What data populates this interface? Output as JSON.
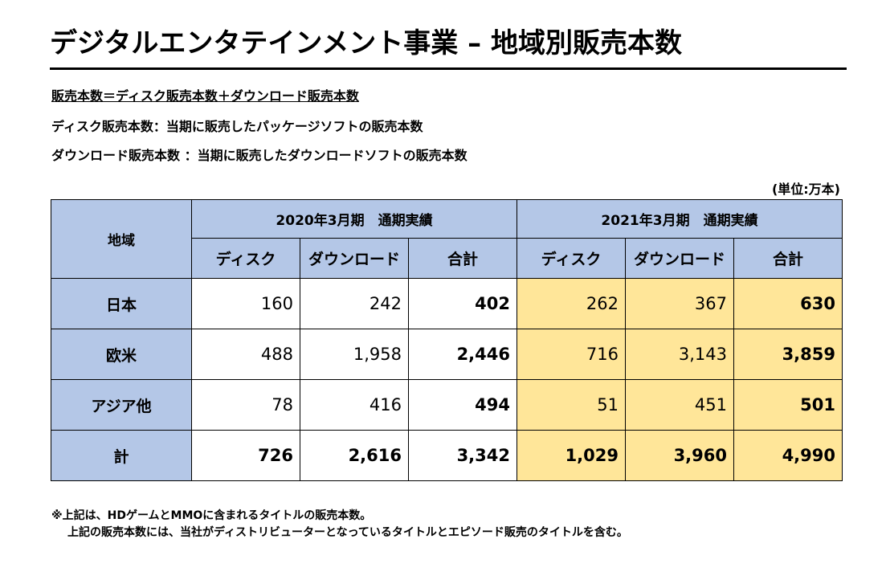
{
  "title": "デジタルエンタテインメント事業 – 地域別販売本数",
  "definitions": {
    "formula": "販売本数＝ディスク販売本数＋ダウンロード販売本数",
    "disc": "ディスク販売本数：当期に販売したパッケージソフトの販売本数",
    "download": "ダウンロード販売本数 ：当期に販売したダウンロードソフトの販売本数"
  },
  "unit": "(単位:万本)",
  "table": {
    "region_header": "地域",
    "periods": [
      {
        "label": "2020年3月期　通期実績"
      },
      {
        "label": "2021年3月期　通期実績"
      }
    ],
    "subheaders": [
      "ディスク",
      "ダウンロード",
      "合計",
      "ディスク",
      "ダウンロード",
      "合計"
    ],
    "rows": [
      {
        "region": "日本",
        "values": [
          "160",
          "242",
          "402",
          "262",
          "367",
          "630"
        ]
      },
      {
        "region": "欧米",
        "values": [
          "488",
          "1,958",
          "2,446",
          "716",
          "3,143",
          "3,859"
        ]
      },
      {
        "region": "アジア他",
        "values": [
          "78",
          "416",
          "494",
          "51",
          "451",
          "501"
        ]
      },
      {
        "region": "計",
        "values": [
          "726",
          "2,616",
          "3,342",
          "1,029",
          "3,960",
          "4,990"
        ]
      }
    ]
  },
  "notes": [
    "※上記は、HDゲームとMMOに含まれるタイトルの販売本数。",
    "上記の販売本数には、当社がディストリビューターとなっているタイトルとエピソード販売のタイトルを含む。"
  ],
  "colors": {
    "header_bg": "#b4c7e7",
    "highlight_2021": "#ffe699"
  }
}
